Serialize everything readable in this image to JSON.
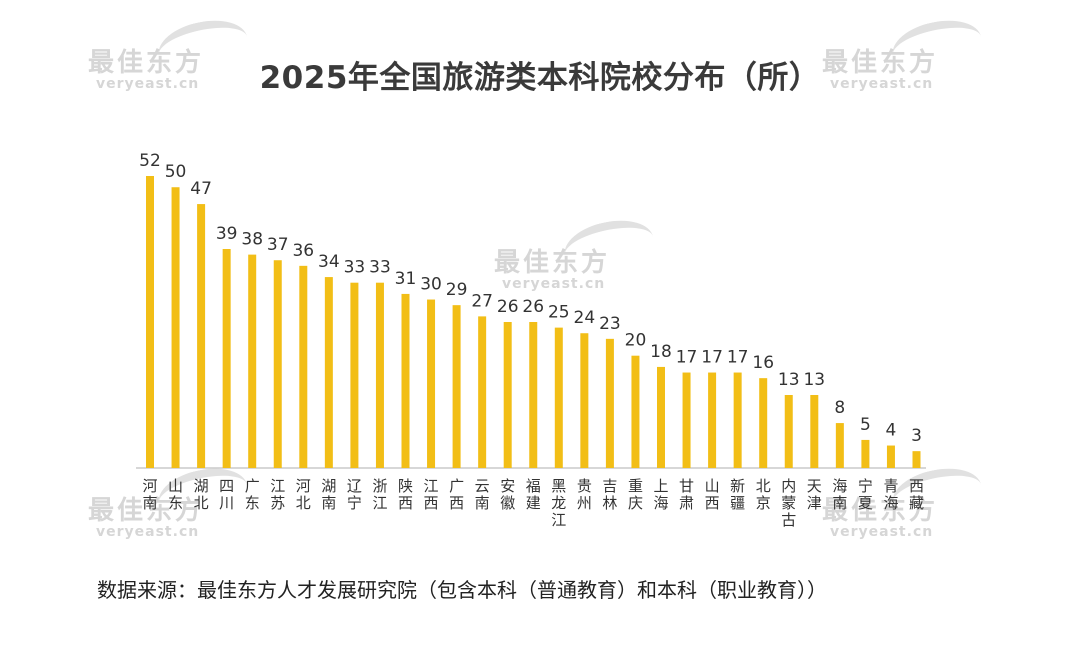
{
  "watermark": {
    "name": "最佳东方",
    "site": "veryeast.cn"
  },
  "chart_data": {
    "type": "bar",
    "title": "2025年全国旅游类本科院校分布（所）",
    "source": "数据来源：最佳东方人才发展研究院（包含本科（普通教育）和本科（职业教育））",
    "categories": [
      "河南",
      "山东",
      "湖北",
      "四川",
      "广东",
      "江苏",
      "河北",
      "湖南",
      "辽宁",
      "浙江",
      "陕西",
      "江西",
      "广西",
      "云南",
      "安徽",
      "福建",
      "黑龙江",
      "贵州",
      "吉林",
      "重庆",
      "上海",
      "甘肃",
      "山西",
      "新疆",
      "北京",
      "内蒙古",
      "天津",
      "海南",
      "宁夏",
      "青海",
      "西藏"
    ],
    "values": [
      52,
      50,
      47,
      39,
      38,
      37,
      36,
      34,
      33,
      33,
      31,
      30,
      29,
      27,
      26,
      26,
      25,
      24,
      23,
      20,
      18,
      17,
      17,
      17,
      16,
      13,
      13,
      8,
      5,
      4,
      3
    ],
    "ylim": [
      0,
      52
    ],
    "grid": false,
    "bar_color": "#F2BE16",
    "axis_color": "#bfbfbf"
  }
}
